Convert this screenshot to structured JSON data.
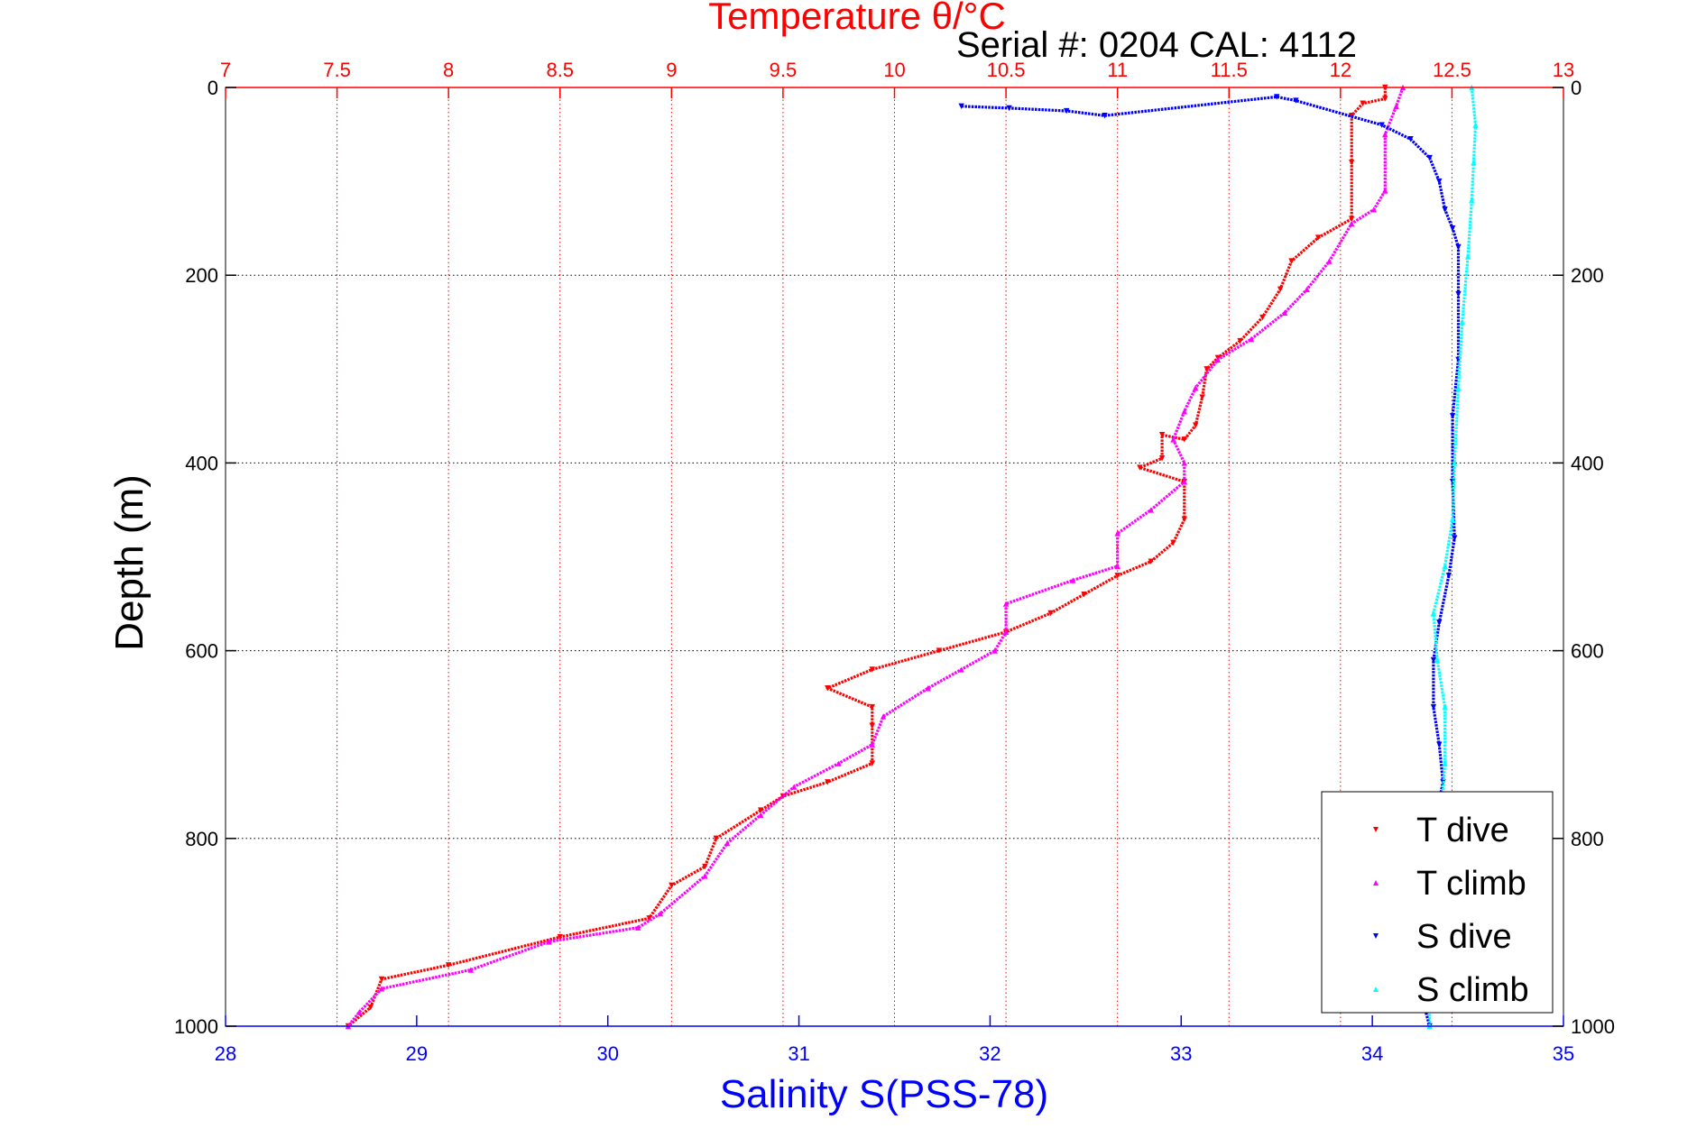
{
  "header": {
    "serial_label": "Serial #: 0204  CAL: 4112"
  },
  "chart_data": {
    "type": "scatter",
    "title": "Temperature θ/°C",
    "x_top": {
      "label": "Temperature θ/°C",
      "range": [
        7,
        13
      ],
      "ticks": [
        7,
        7.5,
        8,
        8.5,
        9,
        9.5,
        10,
        10.5,
        11,
        11.5,
        12,
        12.5,
        13
      ],
      "tick_labels": [
        "7",
        "7.5",
        "8",
        "8.5",
        "9",
        "9.5",
        "10",
        "10.5",
        "11",
        "11.5",
        "12",
        "12.5",
        "13"
      ],
      "color": "#ff0000",
      "grid": true
    },
    "x_bottom": {
      "label": "Salinity S(PSS-78)",
      "range": [
        28,
        35
      ],
      "ticks": [
        28,
        29,
        30,
        31,
        32,
        33,
        34,
        35
      ],
      "tick_labels": [
        "28",
        "29",
        "30",
        "31",
        "32",
        "33",
        "34",
        "35"
      ],
      "color": "#0000ff"
    },
    "y": {
      "label": "Depth (m)",
      "range": [
        0,
        1000
      ],
      "reversed": true,
      "ticks": [
        0,
        200,
        400,
        600,
        800,
        1000
      ],
      "tick_labels": [
        "0",
        "200",
        "400",
        "600",
        "800",
        "1000"
      ],
      "grid": true
    },
    "legend": {
      "position": "bottom-right",
      "entries": [
        "T dive",
        "T climb",
        "S dive",
        "S climb"
      ]
    },
    "series": [
      {
        "name": "T dive",
        "axis": "temperature",
        "color": "#ff0000",
        "marker": "triangle-down",
        "points": [
          [
            12.2,
            0
          ],
          [
            12.2,
            12
          ],
          [
            12.1,
            17
          ],
          [
            12.05,
            30
          ],
          [
            12.05,
            80
          ],
          [
            12.05,
            140
          ],
          [
            11.9,
            160
          ],
          [
            11.78,
            185
          ],
          [
            11.73,
            215
          ],
          [
            11.65,
            245
          ],
          [
            11.55,
            270
          ],
          [
            11.45,
            288
          ],
          [
            11.4,
            300
          ],
          [
            11.38,
            330
          ],
          [
            11.35,
            360
          ],
          [
            11.3,
            375
          ],
          [
            11.2,
            370
          ],
          [
            11.2,
            395
          ],
          [
            11.1,
            405
          ],
          [
            11.3,
            420
          ],
          [
            11.3,
            460
          ],
          [
            11.25,
            485
          ],
          [
            11.15,
            505
          ],
          [
            11.0,
            520
          ],
          [
            10.85,
            540
          ],
          [
            10.7,
            560
          ],
          [
            10.5,
            580
          ],
          [
            10.2,
            600
          ],
          [
            9.9,
            620
          ],
          [
            9.7,
            640
          ],
          [
            9.9,
            660
          ],
          [
            9.9,
            680
          ],
          [
            9.9,
            720
          ],
          [
            9.7,
            740
          ],
          [
            9.5,
            755
          ],
          [
            9.4,
            770
          ],
          [
            9.2,
            800
          ],
          [
            9.15,
            830
          ],
          [
            9.0,
            850
          ],
          [
            8.9,
            885
          ],
          [
            8.5,
            905
          ],
          [
            8.0,
            935
          ],
          [
            7.7,
            950
          ],
          [
            7.65,
            980
          ],
          [
            7.55,
            1000
          ]
        ]
      },
      {
        "name": "T climb",
        "axis": "temperature",
        "color": "#ff00ff",
        "marker": "triangle-up",
        "points": [
          [
            12.28,
            0
          ],
          [
            12.25,
            20
          ],
          [
            12.2,
            50
          ],
          [
            12.2,
            110
          ],
          [
            12.15,
            130
          ],
          [
            12.05,
            145
          ],
          [
            11.95,
            185
          ],
          [
            11.85,
            215
          ],
          [
            11.75,
            240
          ],
          [
            11.6,
            268
          ],
          [
            11.45,
            290
          ],
          [
            11.35,
            320
          ],
          [
            11.3,
            345
          ],
          [
            11.25,
            375
          ],
          [
            11.3,
            400
          ],
          [
            11.3,
            420
          ],
          [
            11.15,
            450
          ],
          [
            11.0,
            475
          ],
          [
            11.0,
            510
          ],
          [
            10.8,
            525
          ],
          [
            10.5,
            550
          ],
          [
            10.5,
            580
          ],
          [
            10.45,
            600
          ],
          [
            10.3,
            620
          ],
          [
            10.15,
            640
          ],
          [
            9.95,
            670
          ],
          [
            9.9,
            700
          ],
          [
            9.75,
            720
          ],
          [
            9.55,
            745
          ],
          [
            9.4,
            775
          ],
          [
            9.25,
            805
          ],
          [
            9.15,
            840
          ],
          [
            8.95,
            880
          ],
          [
            8.85,
            895
          ],
          [
            8.45,
            910
          ],
          [
            8.1,
            940
          ],
          [
            7.7,
            960
          ],
          [
            7.6,
            985
          ],
          [
            7.55,
            1000
          ]
        ]
      },
      {
        "name": "S dive",
        "axis": "salinity",
        "color": "#0000ff",
        "marker": "triangle-down",
        "points": [
          [
            31.85,
            20
          ],
          [
            32.1,
            22
          ],
          [
            32.4,
            25
          ],
          [
            32.6,
            30
          ],
          [
            33.5,
            10
          ],
          [
            33.6,
            14
          ],
          [
            34.05,
            40
          ],
          [
            34.2,
            55
          ],
          [
            34.3,
            75
          ],
          [
            34.35,
            100
          ],
          [
            34.38,
            130
          ],
          [
            34.42,
            150
          ],
          [
            34.45,
            170
          ],
          [
            34.45,
            220
          ],
          [
            34.45,
            290
          ],
          [
            34.42,
            350
          ],
          [
            34.42,
            420
          ],
          [
            34.43,
            480
          ],
          [
            34.4,
            520
          ],
          [
            34.35,
            570
          ],
          [
            34.32,
            610
          ],
          [
            34.32,
            660
          ],
          [
            34.35,
            700
          ],
          [
            34.37,
            740
          ],
          [
            34.33,
            780
          ],
          [
            34.3,
            820
          ],
          [
            34.3,
            880
          ],
          [
            34.28,
            940
          ],
          [
            34.28,
            985
          ],
          [
            34.3,
            1000
          ]
        ]
      },
      {
        "name": "S climb",
        "axis": "salinity",
        "color": "#00ffff",
        "marker": "triangle-up",
        "points": [
          [
            34.52,
            0
          ],
          [
            34.54,
            40
          ],
          [
            34.53,
            80
          ],
          [
            34.52,
            120
          ],
          [
            34.5,
            180
          ],
          [
            34.47,
            250
          ],
          [
            34.45,
            320
          ],
          [
            34.43,
            400
          ],
          [
            34.42,
            460
          ],
          [
            34.38,
            510
          ],
          [
            34.32,
            560
          ],
          [
            34.34,
            610
          ],
          [
            34.38,
            660
          ],
          [
            34.38,
            720
          ],
          [
            34.36,
            780
          ],
          [
            34.32,
            840
          ],
          [
            34.32,
            900
          ],
          [
            34.3,
            960
          ],
          [
            34.3,
            1000
          ]
        ]
      }
    ]
  }
}
